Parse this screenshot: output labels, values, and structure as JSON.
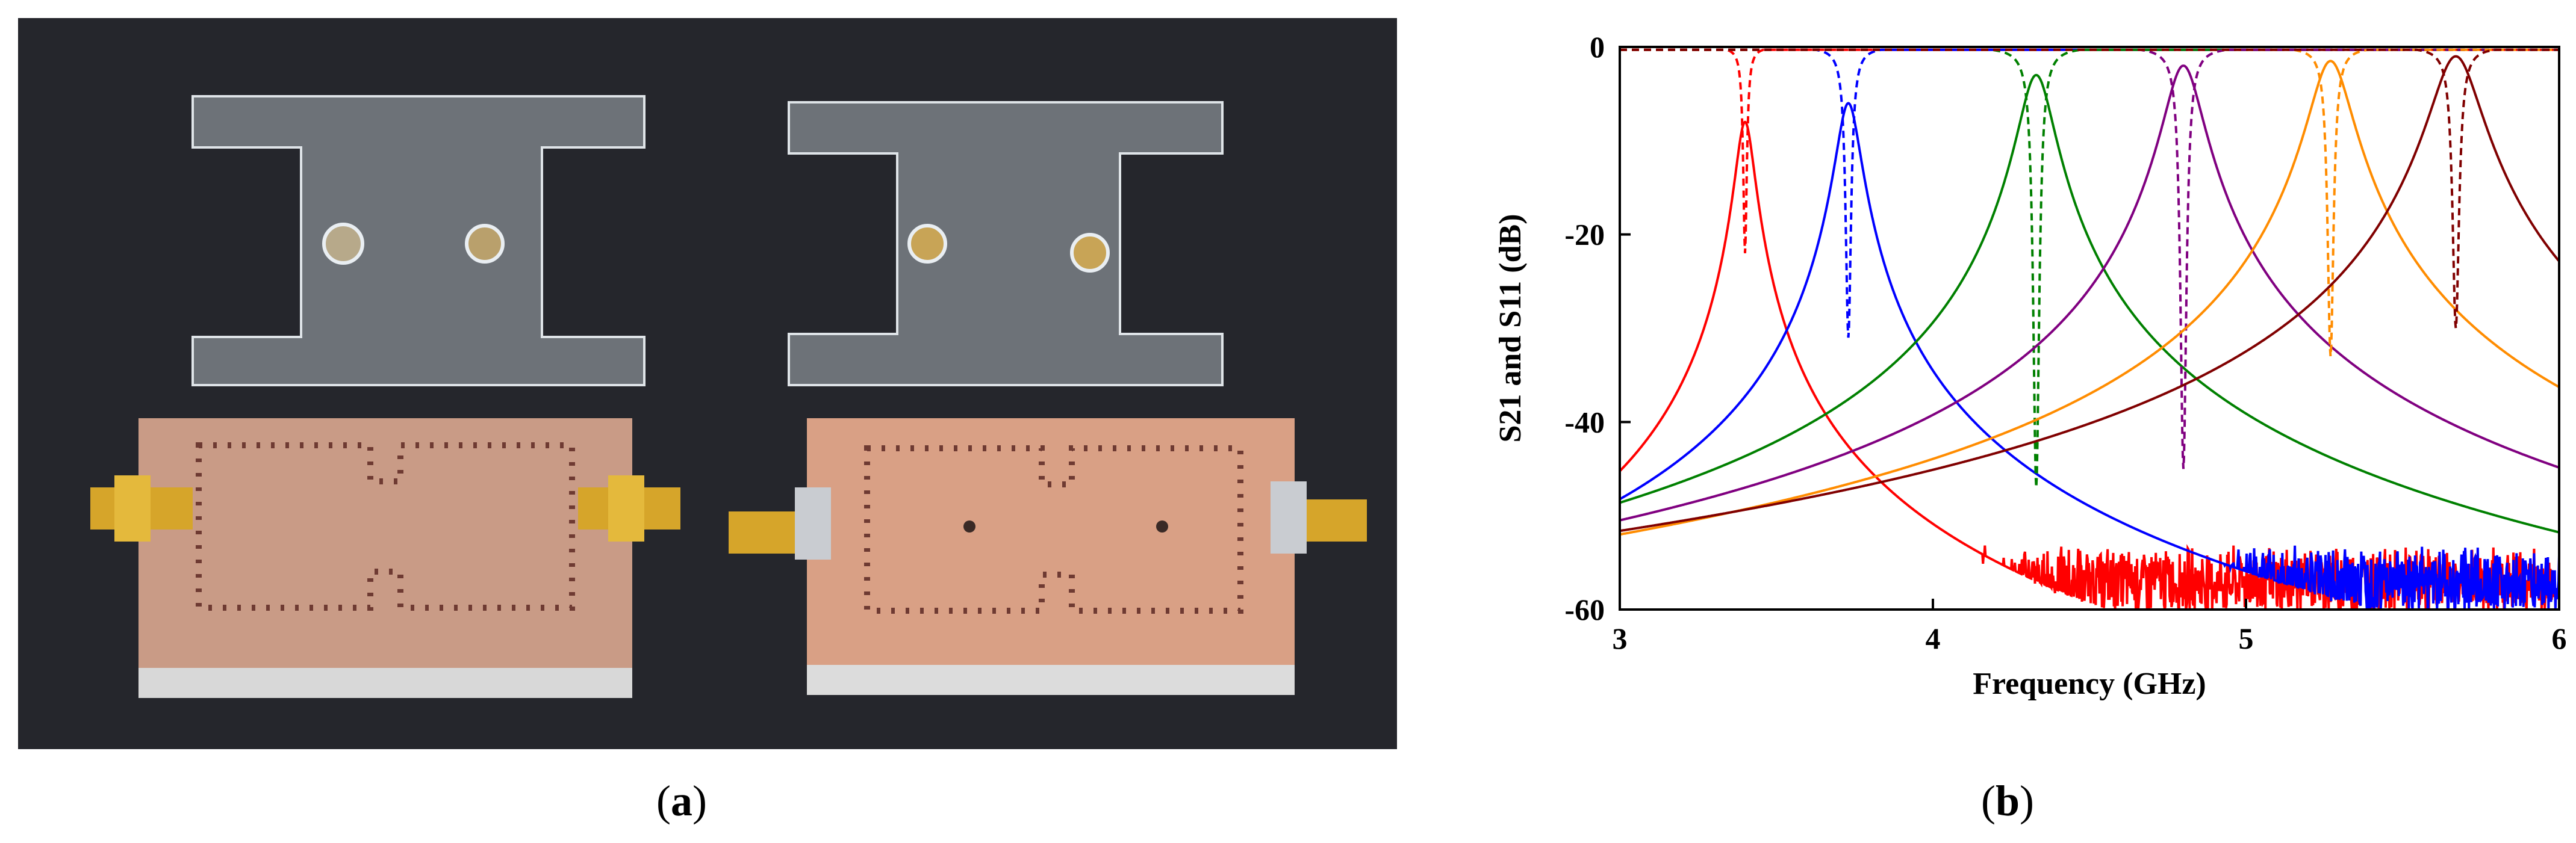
{
  "captions": {
    "a": "a",
    "b": "b"
  },
  "colors": {
    "background_photo": "#1f1f24",
    "copper": "#d9a085",
    "acrylic": "#c9ced3",
    "connector": "#d6a52a"
  },
  "chart_data": {
    "type": "line",
    "xlabel": "Frequency (GHz)",
    "ylabel": "S21 and S11 (dB)",
    "xlim": [
      3,
      6
    ],
    "ylim": [
      -60,
      0
    ],
    "xticks": [
      3,
      4,
      5,
      6
    ],
    "yticks": [
      0,
      -20,
      -40,
      -60
    ],
    "grid": false,
    "legend": "none",
    "series": [
      {
        "color": "#ff0000",
        "center": 3.4,
        "peak_s21": -8,
        "s11_min": -22,
        "s11_width": 0.012,
        "q_width": 0.055
      },
      {
        "color": "#0000ff",
        "center": 3.73,
        "peak_s21": -6,
        "s11_min": -31,
        "s11_width": 0.018,
        "q_width": 0.07
      },
      {
        "color": "#008000",
        "center": 4.33,
        "peak_s21": -3,
        "s11_min": -47,
        "s11_width": 0.02,
        "q_width": 0.1
      },
      {
        "color": "#800080",
        "center": 4.8,
        "peak_s21": -2,
        "s11_min": -45,
        "s11_width": 0.02,
        "q_width": 0.11
      },
      {
        "color": "#ff8c00",
        "center": 5.27,
        "peak_s21": -1.5,
        "s11_min": -33,
        "s11_width": 0.02,
        "q_width": 0.12
      },
      {
        "color": "#800000",
        "center": 5.67,
        "peak_s21": -1,
        "s11_min": -30,
        "s11_width": 0.022,
        "q_width": 0.14
      }
    ]
  }
}
